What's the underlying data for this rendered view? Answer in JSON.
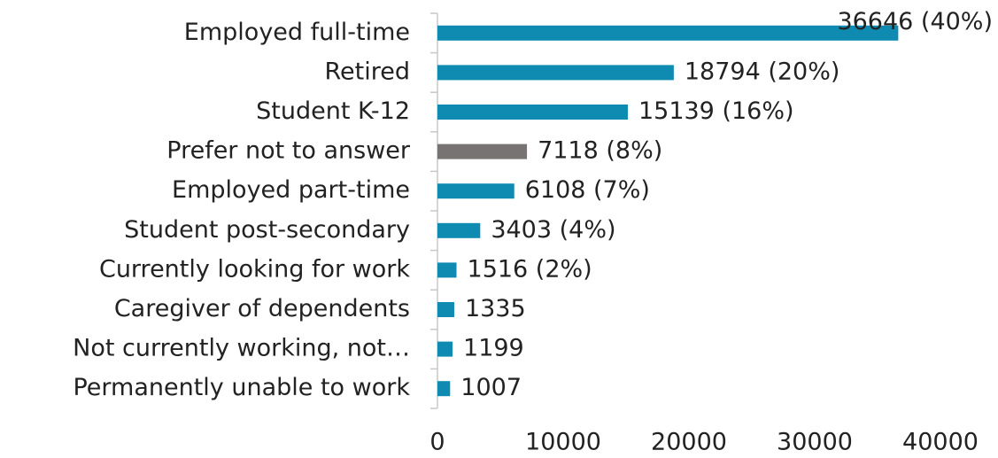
{
  "chart_data": {
    "type": "bar",
    "orientation": "horizontal",
    "categories": [
      "Employed full-time",
      "Retired",
      "Student K-12",
      "Prefer not to answer",
      "Employed part-time",
      "Student post-secondary ",
      "Currently looking for work",
      "Caregiver of dependents",
      "Not currently working, not…",
      "Permanently unable to work"
    ],
    "values": [
      36646,
      18794,
      15139,
      7118,
      6108,
      3403,
      1516,
      1335,
      1199,
      1007
    ],
    "value_labels": [
      "36646 (40%)",
      "18794 (20%)",
      "15139 (16%)",
      "7118 (8%)",
      "6108 (7%)",
      "3403 (4%)",
      "1516 (2%)",
      "1335",
      "1199",
      "1007"
    ],
    "colors": [
      "#0f8bb2",
      "#0f8bb2",
      "#0f8bb2",
      "#777373",
      "#0f8bb2",
      "#0f8bb2",
      "#0f8bb2",
      "#0f8bb2",
      "#0f8bb2",
      "#0f8bb2"
    ],
    "xlim": [
      0,
      40000
    ],
    "xticks": [
      0,
      10000,
      20000,
      30000,
      40000
    ],
    "grid": false
  }
}
